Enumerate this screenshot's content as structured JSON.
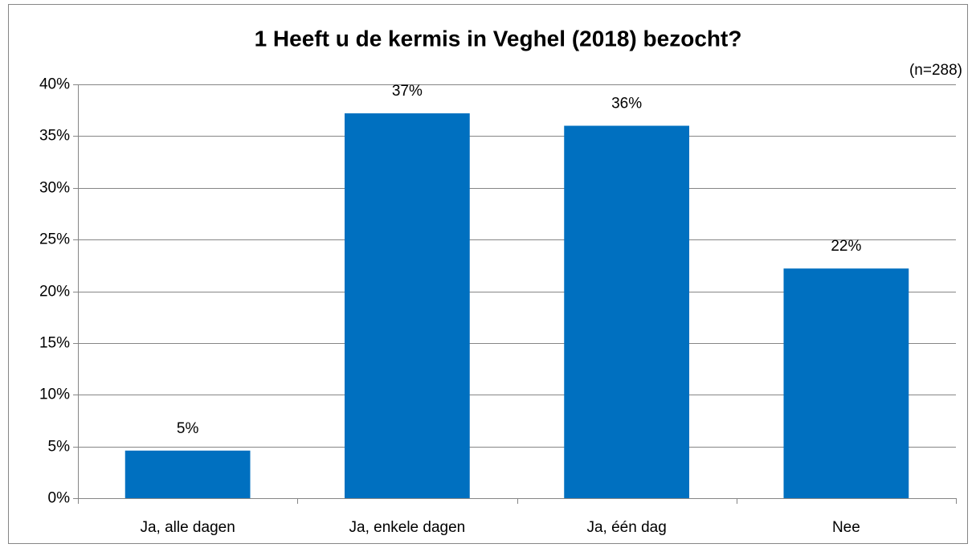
{
  "chart_data": {
    "type": "bar",
    "title": "1 Heeft u de kermis in Veghel (2018) bezocht?",
    "annotation": "(n=288)",
    "categories": [
      "Ja, alle dagen",
      "Ja, enkele dagen",
      "Ja, één dag",
      "Nee"
    ],
    "values": [
      4.6,
      37.2,
      36.0,
      22.2
    ],
    "value_labels": [
      "5%",
      "37%",
      "36%",
      "22%"
    ],
    "color": "#0070c0",
    "ylim": [
      0,
      40
    ],
    "yticks": [
      {
        "value": 0,
        "label": "0%"
      },
      {
        "value": 5,
        "label": "5%"
      },
      {
        "value": 10,
        "label": "10%"
      },
      {
        "value": 15,
        "label": "15%"
      },
      {
        "value": 20,
        "label": "20%"
      },
      {
        "value": 25,
        "label": "25%"
      },
      {
        "value": 30,
        "label": "30%"
      },
      {
        "value": 35,
        "label": "35%"
      },
      {
        "value": 40,
        "label": "40%"
      }
    ],
    "grid": true
  }
}
